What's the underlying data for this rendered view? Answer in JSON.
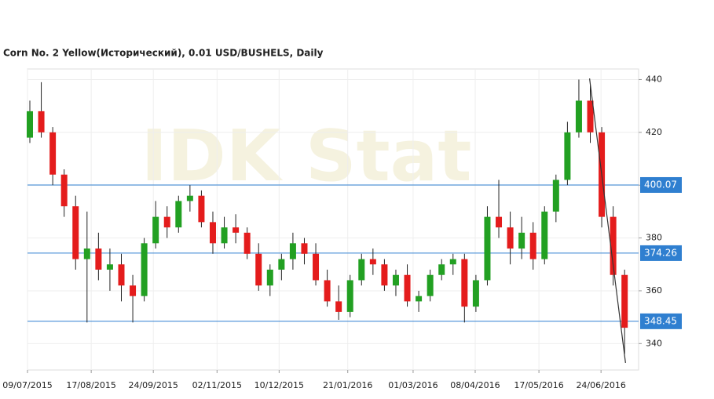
{
  "chart_data": {
    "type": "candlestick",
    "title": "Corn  No. 2 Yellow(Исторический), 0.01 USD/BUSHELS, Daily",
    "watermark": "IDK Stat",
    "x": [
      "09/07/2015",
      "16/07/2015",
      "23/07/2015",
      "30/07/2015",
      "06/08/2015",
      "13/08/2015",
      "20/08/2015",
      "27/08/2015",
      "03/09/2015",
      "10/09/2015",
      "17/09/2015",
      "24/09/2015",
      "01/10/2015",
      "08/10/2015",
      "15/10/2015",
      "22/10/2015",
      "29/10/2015",
      "05/11/2015",
      "12/11/2015",
      "19/11/2015",
      "26/11/2015",
      "03/12/2015",
      "10/12/2015",
      "17/12/2015",
      "24/12/2015",
      "31/12/2015",
      "07/01/2016",
      "14/01/2016",
      "21/01/2016",
      "28/01/2016",
      "04/02/2016",
      "11/02/2016",
      "18/02/2016",
      "25/02/2016",
      "03/03/2016",
      "10/03/2016",
      "17/03/2016",
      "24/03/2016",
      "31/03/2016",
      "07/04/2016",
      "14/04/2016",
      "21/04/2016",
      "28/04/2016",
      "05/05/2016",
      "12/05/2016",
      "19/05/2016",
      "26/05/2016",
      "02/06/2016",
      "09/06/2016",
      "16/06/2016",
      "23/06/2016",
      "30/06/2016",
      "07/07/2016"
    ],
    "open": [
      418,
      428,
      420,
      404,
      392,
      372,
      376,
      368,
      370,
      362,
      358,
      378,
      388,
      384,
      394,
      396,
      386,
      378,
      384,
      382,
      374,
      362,
      368,
      372,
      378,
      374,
      364,
      356,
      352,
      364,
      372,
      370,
      362,
      366,
      356,
      358,
      366,
      370,
      372,
      354,
      364,
      388,
      384,
      376,
      382,
      372,
      390,
      402,
      420,
      432,
      420,
      388,
      366
    ],
    "high": [
      432,
      439,
      422,
      406,
      396,
      390,
      382,
      376,
      374,
      366,
      380,
      394,
      392,
      396,
      400,
      398,
      390,
      388,
      389,
      384,
      378,
      370,
      374,
      382,
      380,
      378,
      368,
      362,
      366,
      374,
      376,
      372,
      368,
      370,
      360,
      368,
      372,
      374,
      374,
      366,
      392,
      402,
      390,
      388,
      386,
      392,
      404,
      424,
      440,
      438,
      422,
      392,
      368
    ],
    "low": [
      416,
      418,
      400,
      388,
      368,
      348,
      364,
      360,
      356,
      348,
      356,
      376,
      380,
      382,
      390,
      384,
      374,
      376,
      378,
      372,
      360,
      358,
      364,
      368,
      370,
      362,
      354,
      349,
      350,
      362,
      366,
      360,
      358,
      354,
      352,
      356,
      364,
      366,
      348,
      352,
      362,
      380,
      370,
      372,
      368,
      370,
      386,
      400,
      418,
      416,
      384,
      362,
      336
    ],
    "close": [
      428,
      420,
      404,
      392,
      372,
      376,
      368,
      370,
      362,
      358,
      378,
      388,
      384,
      394,
      396,
      386,
      378,
      384,
      382,
      374,
      362,
      368,
      372,
      378,
      374,
      364,
      356,
      352,
      364,
      372,
      370,
      362,
      366,
      356,
      358,
      366,
      370,
      372,
      354,
      364,
      388,
      384,
      376,
      382,
      372,
      390,
      402,
      420,
      432,
      420,
      388,
      366,
      346
    ],
    "up_color": "#22a022",
    "down_color": "#e41c1c",
    "levels": [
      400.07,
      374.26,
      348.45
    ],
    "level_color": "#2f7fd0",
    "trendline": {
      "x": [
        "17/06/2016",
        "09/07/2016"
      ],
      "y": [
        440.4,
        332.7
      ],
      "color": "#333333"
    },
    "xlim": [
      "09/07/2015",
      "17/07/2016"
    ],
    "xticks": [
      "09/07/2015",
      "17/08/2015",
      "24/09/2015",
      "02/11/2015",
      "10/12/2015",
      "21/01/2016",
      "01/03/2016",
      "08/04/2016",
      "17/05/2016",
      "24/06/2016"
    ],
    "ylim": [
      330,
      444
    ],
    "yticks": [
      340,
      360,
      380,
      400,
      420,
      440
    ],
    "grid": true
  }
}
